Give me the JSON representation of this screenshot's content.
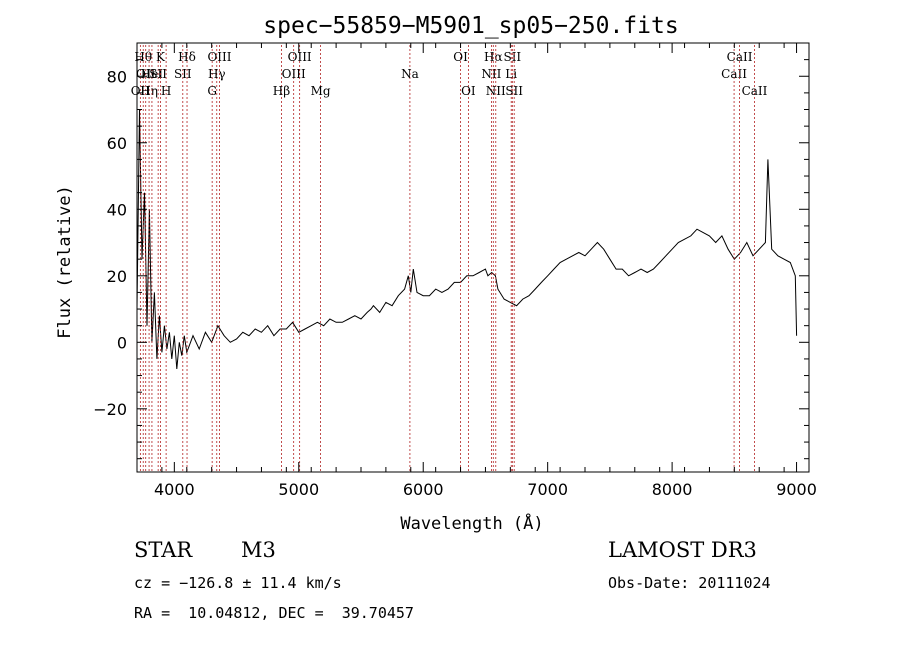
{
  "chart_data": {
    "type": "line",
    "title": "spec−55859−M5901_sp05−250.fits",
    "xlabel": "Wavelength (Å)",
    "ylabel": "Flux (relative)",
    "xlim": [
      3700,
      9100
    ],
    "ylim": [
      -39,
      90
    ],
    "xticks": [
      4000,
      5000,
      6000,
      7000,
      8000,
      9000
    ],
    "yticks": [
      -20,
      0,
      20,
      40,
      60,
      80
    ],
    "ytick_labels": [
      "−20",
      "0",
      "20",
      "40",
      "60",
      "80"
    ],
    "grid": false,
    "series": [
      {
        "name": "spectrum",
        "x": [
          3700,
          3720,
          3740,
          3760,
          3780,
          3800,
          3820,
          3840,
          3860,
          3880,
          3900,
          3920,
          3940,
          3960,
          3980,
          4000,
          4020,
          4040,
          4060,
          4080,
          4100,
          4150,
          4200,
          4250,
          4300,
          4350,
          4400,
          4450,
          4500,
          4550,
          4600,
          4650,
          4700,
          4750,
          4800,
          4850,
          4900,
          4950,
          5000,
          5050,
          5100,
          5150,
          5200,
          5250,
          5300,
          5350,
          5400,
          5450,
          5500,
          5550,
          5580,
          5600,
          5650,
          5700,
          5750,
          5800,
          5850,
          5880,
          5900,
          5920,
          5950,
          6000,
          6050,
          6100,
          6150,
          6200,
          6250,
          6300,
          6350,
          6400,
          6450,
          6500,
          6520,
          6550,
          6580,
          6600,
          6650,
          6700,
          6750,
          6800,
          6850,
          6900,
          6950,
          7000,
          7050,
          7100,
          7150,
          7200,
          7250,
          7300,
          7350,
          7400,
          7450,
          7500,
          7550,
          7600,
          7650,
          7700,
          7750,
          7800,
          7850,
          7900,
          7950,
          8000,
          8050,
          8100,
          8150,
          8200,
          8250,
          8300,
          8350,
          8400,
          8450,
          8500,
          8550,
          8600,
          8650,
          8700,
          8750,
          8770,
          8800,
          8850,
          8900,
          8950,
          8990,
          9000
        ],
        "y": [
          10,
          70,
          25,
          45,
          5,
          40,
          0,
          15,
          -5,
          8,
          -3,
          5,
          -2,
          3,
          -5,
          2,
          -8,
          0,
          -4,
          2,
          -3,
          2,
          -2,
          3,
          0,
          5,
          2,
          0,
          1,
          3,
          2,
          4,
          3,
          5,
          2,
          4,
          4,
          6,
          3,
          4,
          5,
          6,
          5,
          7,
          6,
          6,
          7,
          8,
          7,
          9,
          10,
          11,
          9,
          12,
          11,
          14,
          16,
          20,
          15,
          22,
          15,
          14,
          14,
          16,
          15,
          16,
          18,
          18,
          20,
          20,
          21,
          22,
          20,
          21,
          20,
          16,
          13,
          12,
          11,
          13,
          14,
          16,
          18,
          20,
          22,
          24,
          25,
          26,
          27,
          26,
          28,
          30,
          28,
          25,
          22,
          22,
          20,
          21,
          22,
          21,
          22,
          24,
          26,
          28,
          30,
          31,
          32,
          34,
          33,
          32,
          30,
          32,
          28,
          25,
          27,
          30,
          26,
          28,
          30,
          55,
          28,
          26,
          25,
          24,
          20,
          2
        ]
      }
    ],
    "line_markers": [
      {
        "wavelength": 3727,
        "label": "OII",
        "row": 3
      },
      {
        "wavelength": 3750,
        "label": "Hθ",
        "row": 1
      },
      {
        "wavelength": 3770,
        "label": "OII",
        "row": 2
      },
      {
        "wavelength": 3797,
        "label": "Hη",
        "row": 3
      },
      {
        "wavelength": 3820,
        "label": "HeI",
        "row": 2
      },
      {
        "wavelength": 3870,
        "label": "SII",
        "row": 2
      },
      {
        "wavelength": 3889,
        "label": "K",
        "row": 1
      },
      {
        "wavelength": 3934,
        "label": "H",
        "row": 3
      },
      {
        "wavelength": 4068,
        "label": "SII",
        "row": 2
      },
      {
        "wavelength": 4102,
        "label": "Hδ",
        "row": 1
      },
      {
        "wavelength": 4304,
        "label": "G",
        "row": 3
      },
      {
        "wavelength": 4341,
        "label": "Hγ",
        "row": 2
      },
      {
        "wavelength": 4363,
        "label": "OIII",
        "row": 1
      },
      {
        "wavelength": 4861,
        "label": "Hβ",
        "row": 3
      },
      {
        "wavelength": 4959,
        "label": "OIII",
        "row": 2
      },
      {
        "wavelength": 5007,
        "label": "OIII",
        "row": 1
      },
      {
        "wavelength": 5175,
        "label": "Mg",
        "row": 3
      },
      {
        "wavelength": 5893,
        "label": "Na",
        "row": 2
      },
      {
        "wavelength": 6300,
        "label": "OI",
        "row": 1
      },
      {
        "wavelength": 6363,
        "label": "OI",
        "row": 3
      },
      {
        "wavelength": 6548,
        "label": "NII",
        "row": 2
      },
      {
        "wavelength": 6563,
        "label": "Hα",
        "row": 1
      },
      {
        "wavelength": 6583,
        "label": "NII",
        "row": 3
      },
      {
        "wavelength": 6707,
        "label": "Li",
        "row": 2
      },
      {
        "wavelength": 6716,
        "label": "SII",
        "row": 1
      },
      {
        "wavelength": 6731,
        "label": "SII",
        "row": 3
      },
      {
        "wavelength": 8498,
        "label": "CaII",
        "row": 2
      },
      {
        "wavelength": 8542,
        "label": "CaII",
        "row": 1
      },
      {
        "wavelength": 8662,
        "label": "CaII",
        "row": 3
      }
    ],
    "colors": {
      "spectrum": "#000000",
      "line_marker": "#b22222",
      "axes": "#000000"
    }
  },
  "info": {
    "class_label": "STAR",
    "subclass": "M3",
    "survey": "LAMOST DR3",
    "cz": "cz = −126.8 ± 11.4 km/s",
    "obs_date": "Obs-Date: 20111024",
    "coords": "RA =  10.04812, DEC =  39.70457"
  }
}
